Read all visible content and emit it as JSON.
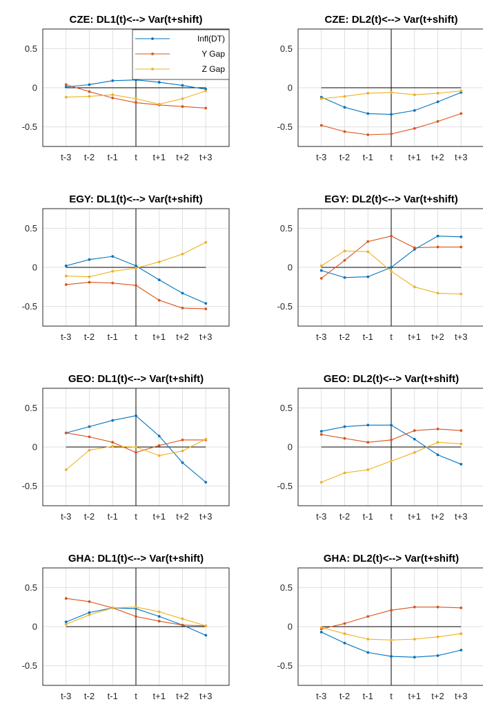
{
  "chart_data": [
    {
      "type": "line",
      "title": "CZE: DL1(t)<--> Var(t+shift)",
      "categories": [
        "t-3",
        "t-2",
        "t-1",
        "t",
        "t+1",
        "t+2",
        "t+3"
      ],
      "ylim": [
        -0.75,
        0.75
      ],
      "yticks": [
        "0.5",
        "0",
        "-0.5"
      ],
      "grid": true,
      "legend_position": "top-right",
      "series": [
        {
          "name": "Infl(DT)",
          "values": [
            0.01,
            0.04,
            0.09,
            0.1,
            0.07,
            0.03,
            -0.02
          ]
        },
        {
          "name": "Y Gap",
          "values": [
            0.04,
            -0.05,
            -0.13,
            -0.19,
            -0.22,
            -0.24,
            -0.26
          ]
        },
        {
          "name": "Z Gap",
          "values": [
            -0.12,
            -0.11,
            -0.09,
            -0.14,
            -0.21,
            -0.14,
            -0.04
          ]
        }
      ]
    },
    {
      "type": "line",
      "title": "CZE: DL2(t)<--> Var(t+shift)",
      "categories": [
        "t-3",
        "t-2",
        "t-1",
        "t",
        "t+1",
        "t+2",
        "t+3"
      ],
      "ylim": [
        -0.75,
        0.75
      ],
      "yticks": [
        "0.5",
        "0",
        "-0.5"
      ],
      "grid": true,
      "series": [
        {
          "values": [
            -0.12,
            -0.25,
            -0.33,
            -0.34,
            -0.29,
            -0.18,
            -0.06
          ]
        },
        {
          "values": [
            -0.48,
            -0.56,
            -0.6,
            -0.59,
            -0.52,
            -0.43,
            -0.33
          ]
        },
        {
          "values": [
            -0.14,
            -0.11,
            -0.07,
            -0.06,
            -0.09,
            -0.07,
            -0.04
          ]
        }
      ]
    },
    {
      "type": "line",
      "title": "EGY: DL1(t)<--> Var(t+shift)",
      "categories": [
        "t-3",
        "t-2",
        "t-1",
        "t",
        "t+1",
        "t+2",
        "t+3"
      ],
      "ylim": [
        -0.75,
        0.75
      ],
      "yticks": [
        "0.5",
        "0",
        "-0.5"
      ],
      "grid": true,
      "series": [
        {
          "values": [
            0.02,
            0.1,
            0.14,
            0.02,
            -0.16,
            -0.33,
            -0.46
          ]
        },
        {
          "values": [
            -0.22,
            -0.19,
            -0.2,
            -0.23,
            -0.42,
            -0.52,
            -0.53
          ]
        },
        {
          "values": [
            -0.11,
            -0.12,
            -0.05,
            -0.01,
            0.07,
            0.17,
            0.32
          ]
        }
      ]
    },
    {
      "type": "line",
      "title": "EGY: DL2(t)<--> Var(t+shift)",
      "categories": [
        "t-3",
        "t-2",
        "t-1",
        "t",
        "t+1",
        "t+2",
        "t+3"
      ],
      "ylim": [
        -0.75,
        0.75
      ],
      "yticks": [
        "0.5",
        "0",
        "-0.5"
      ],
      "grid": true,
      "series": [
        {
          "values": [
            -0.04,
            -0.13,
            -0.12,
            0.0,
            0.23,
            0.4,
            0.39
          ]
        },
        {
          "values": [
            -0.14,
            0.09,
            0.33,
            0.4,
            0.25,
            0.26,
            0.26
          ]
        },
        {
          "values": [
            0.02,
            0.21,
            0.2,
            -0.05,
            -0.25,
            -0.33,
            -0.34
          ]
        }
      ]
    },
    {
      "type": "line",
      "title": "GEO: DL1(t)<--> Var(t+shift)",
      "categories": [
        "t-3",
        "t-2",
        "t-1",
        "t",
        "t+1",
        "t+2",
        "t+3"
      ],
      "ylim": [
        -0.75,
        0.75
      ],
      "yticks": [
        "0.5",
        "0",
        "-0.5"
      ],
      "grid": true,
      "series": [
        {
          "values": [
            0.18,
            0.26,
            0.34,
            0.4,
            0.14,
            -0.2,
            -0.45
          ]
        },
        {
          "values": [
            0.18,
            0.13,
            0.06,
            -0.07,
            0.02,
            0.09,
            0.09
          ]
        },
        {
          "values": [
            -0.29,
            -0.04,
            0.01,
            0.0,
            -0.11,
            -0.05,
            0.1
          ]
        }
      ]
    },
    {
      "type": "line",
      "title": "GEO: DL2(t)<--> Var(t+shift)",
      "categories": [
        "t-3",
        "t-2",
        "t-1",
        "t",
        "t+1",
        "t+2",
        "t+3"
      ],
      "ylim": [
        -0.75,
        0.75
      ],
      "yticks": [
        "0.5",
        "0",
        "-0.5"
      ],
      "grid": true,
      "series": [
        {
          "values": [
            0.2,
            0.26,
            0.28,
            0.28,
            0.1,
            -0.1,
            -0.22
          ]
        },
        {
          "values": [
            0.16,
            0.11,
            0.06,
            0.09,
            0.21,
            0.23,
            0.21
          ]
        },
        {
          "values": [
            -0.45,
            -0.33,
            -0.29,
            -0.18,
            -0.07,
            0.06,
            0.04
          ]
        }
      ]
    },
    {
      "type": "line",
      "title": "GHA: DL1(t)<--> Var(t+shift)",
      "categories": [
        "t-3",
        "t-2",
        "t-1",
        "t",
        "t+1",
        "t+2",
        "t+3"
      ],
      "ylim": [
        -0.75,
        0.75
      ],
      "yticks": [
        "0.5",
        "0",
        "-0.5"
      ],
      "grid": true,
      "series": [
        {
          "values": [
            0.06,
            0.18,
            0.24,
            0.23,
            0.13,
            0.02,
            -0.11
          ]
        },
        {
          "values": [
            0.36,
            0.32,
            0.24,
            0.13,
            0.07,
            0.02,
            0.01
          ]
        },
        {
          "values": [
            0.03,
            0.15,
            0.24,
            0.25,
            0.19,
            0.1,
            0.01
          ]
        }
      ]
    },
    {
      "type": "line",
      "title": "GHA: DL2(t)<--> Var(t+shift)",
      "categories": [
        "t-3",
        "t-2",
        "t-1",
        "t",
        "t+1",
        "t+2",
        "t+3"
      ],
      "ylim": [
        -0.75,
        0.75
      ],
      "yticks": [
        "0.5",
        "0",
        "-0.5"
      ],
      "grid": true,
      "series": [
        {
          "values": [
            -0.07,
            -0.21,
            -0.33,
            -0.38,
            -0.39,
            -0.37,
            -0.3
          ]
        },
        {
          "values": [
            -0.03,
            0.04,
            0.13,
            0.21,
            0.25,
            0.25,
            0.24
          ]
        },
        {
          "values": [
            -0.01,
            -0.09,
            -0.16,
            -0.17,
            -0.16,
            -0.13,
            -0.09
          ]
        }
      ]
    }
  ],
  "legend": {
    "entries": [
      "Infl(DT)",
      "Y Gap",
      "Z Gap"
    ]
  },
  "colors": {
    "series": [
      "#0072BD",
      "#D95319",
      "#EDB120"
    ],
    "grid": "#dfdfdf",
    "axis": "#262626",
    "reference_line": "#000000"
  }
}
